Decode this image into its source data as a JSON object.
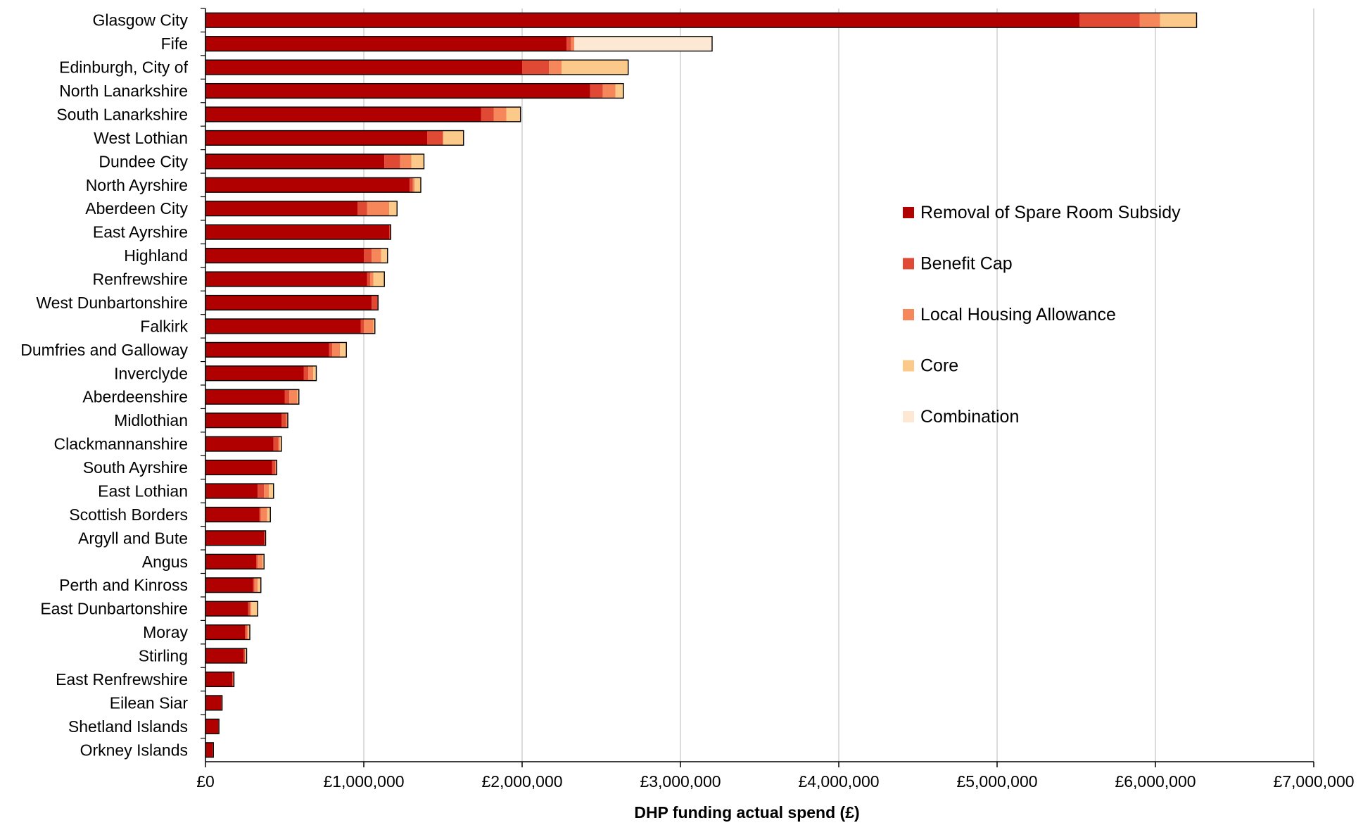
{
  "chart_data": {
    "type": "bar",
    "orientation": "horizontal",
    "stacked": true,
    "title": "",
    "xlabel": "DHP funding actual spend (£)",
    "ylabel": "",
    "xlim": [
      0,
      7000000
    ],
    "x_ticks": [
      0,
      1000000,
      2000000,
      3000000,
      4000000,
      5000000,
      6000000,
      7000000
    ],
    "x_tick_labels": [
      "£0",
      "£1,000,000",
      "£2,000,000",
      "£3,000,000",
      "£4,000,000",
      "£5,000,000",
      "£6,000,000",
      "£7,000,000"
    ],
    "grid": "vertical gridlines on",
    "legend_position": "right",
    "categories": [
      "Glasgow City",
      "Fife",
      "Edinburgh, City of",
      "North Lanarkshire",
      "South Lanarkshire",
      "West Lothian",
      "Dundee City",
      "North Ayrshire",
      "Aberdeen City",
      "East Ayrshire",
      "Highland",
      "Renfrewshire",
      "West Dunbartonshire",
      "Falkirk",
      "Dumfries and Galloway",
      "Inverclyde",
      "Aberdeenshire",
      "Midlothian",
      "Clackmannanshire",
      "South Ayrshire",
      "East Lothian",
      "Scottish Borders",
      "Argyll and Bute",
      "Angus",
      "Perth and Kinross",
      "East Dunbartonshire",
      "Moray",
      "Stirling",
      "East Renfrewshire",
      "Eilean Siar",
      "Shetland Islands",
      "Orkney Islands"
    ],
    "series": [
      {
        "name": "Removal of Spare Room Subsidy",
        "color": "#b10000",
        "values": [
          5520000,
          2280000,
          2000000,
          2430000,
          1740000,
          1400000,
          1130000,
          1290000,
          960000,
          1160000,
          1000000,
          1020000,
          1050000,
          980000,
          780000,
          620000,
          500000,
          480000,
          430000,
          420000,
          330000,
          340000,
          370000,
          320000,
          300000,
          270000,
          250000,
          240000,
          170000,
          100000,
          80000,
          45000
        ]
      },
      {
        "name": "Benefit Cap",
        "color": "#e04a35",
        "values": [
          380000,
          30000,
          170000,
          80000,
          80000,
          100000,
          100000,
          20000,
          60000,
          10000,
          50000,
          20000,
          40000,
          20000,
          20000,
          30000,
          30000,
          30000,
          30000,
          20000,
          40000,
          10000,
          10000,
          10000,
          10000,
          10000,
          10000,
          10000,
          10000,
          5000,
          5000,
          5000
        ]
      },
      {
        "name": "Local Housing Allowance",
        "color": "#f6875a",
        "values": [
          130000,
          20000,
          80000,
          80000,
          80000,
          0,
          70000,
          10000,
          140000,
          0,
          60000,
          20000,
          0,
          60000,
          50000,
          30000,
          50000,
          10000,
          10000,
          10000,
          30000,
          40000,
          0,
          30000,
          20000,
          10000,
          10000,
          0,
          0,
          0,
          0,
          0
        ]
      },
      {
        "name": "Core",
        "color": "#fbc98a",
        "values": [
          230000,
          0,
          420000,
          50000,
          90000,
          130000,
          80000,
          40000,
          50000,
          0,
          40000,
          70000,
          0,
          10000,
          40000,
          20000,
          10000,
          0,
          10000,
          0,
          30000,
          20000,
          0,
          10000,
          20000,
          40000,
          10000,
          10000,
          0,
          0,
          0,
          0
        ]
      },
      {
        "name": "Combination",
        "color": "#fde9d3",
        "values": [
          0,
          870000,
          0,
          0,
          0,
          0,
          0,
          0,
          0,
          0,
          0,
          0,
          0,
          0,
          0,
          0,
          0,
          0,
          0,
          0,
          0,
          0,
          0,
          0,
          0,
          0,
          0,
          0,
          0,
          0,
          0,
          0
        ]
      }
    ]
  }
}
